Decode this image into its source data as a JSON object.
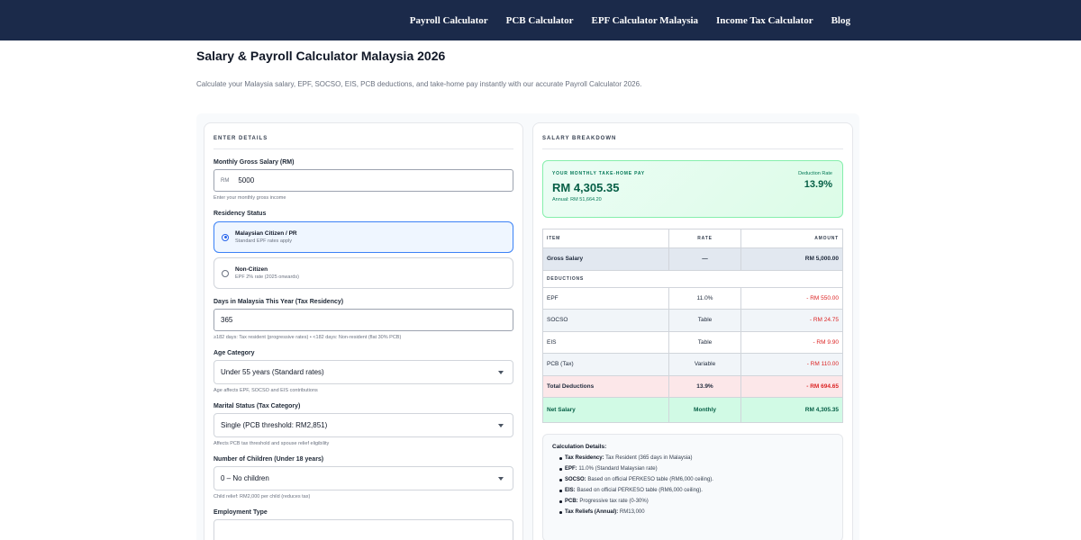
{
  "nav": {
    "links": [
      "Payroll Calculator",
      "PCB Calculator",
      "EPF Calculator Malaysia",
      "Income Tax Calculator",
      "Blog"
    ]
  },
  "page": {
    "title": "Salary & Payroll Calculator Malaysia 2026",
    "subtitle": "Calculate your Malaysia salary, EPF, SOCSO, EIS, PCB deductions, and take-home pay instantly with our accurate Payroll Calculator 2026."
  },
  "form": {
    "section_title": "ENTER DETAILS",
    "salary": {
      "label": "Monthly Gross Salary (RM)",
      "prefix": "RM",
      "value": "5000",
      "hint": "Enter your monthly gross income"
    },
    "residency": {
      "label": "Residency Status",
      "options": [
        {
          "title": "Malaysian Citizen / PR",
          "desc": "Standard EPF rates apply",
          "selected": true
        },
        {
          "title": "Non-Citizen",
          "desc": "EPF 2% rate (2025 onwards)",
          "selected": false
        }
      ]
    },
    "days": {
      "label": "Days in Malaysia This Year (Tax Residency)",
      "value": "365",
      "hint": "≥182 days: Tax resident (progressive rates) • <182 days: Non-resident (flat 30% PCB)"
    },
    "age": {
      "label": "Age Category",
      "value": "Under 55 years (Standard rates)",
      "hint": "Age affects EPF, SOCSO and EIS contributions"
    },
    "marital": {
      "label": "Marital Status (Tax Category)",
      "value": "Single (PCB threshold: RM2,851)",
      "hint": "Affects PCB tax threshold and spouse relief eligibility"
    },
    "children": {
      "label": "Number of Children (Under 18 years)",
      "value": "0 – No children",
      "hint": "Child relief: RM2,000 per child (reduces tax)"
    },
    "employment": {
      "label": "Employment Type"
    }
  },
  "breakdown": {
    "section_title": "SALARY BREAKDOWN",
    "takehome_label": "YOUR MONTHLY TAKE-HOME PAY",
    "takehome_amount": "RM 4,305.35",
    "annual": "Annual: RM 51,664.20",
    "deduction_rate_label": "Deduction Rate",
    "deduction_rate": "13.9%",
    "table": {
      "headers": [
        "ITEM",
        "RATE",
        "AMOUNT"
      ],
      "gross": {
        "item": "Gross Salary",
        "rate": "—",
        "amount": "RM 5,000.00"
      },
      "group_label": "DEDUCTIONS",
      "rows": [
        {
          "item": "EPF",
          "rate": "11.0%",
          "amount": "- RM 550.00"
        },
        {
          "item": "SOCSO",
          "rate": "Table",
          "amount": "- RM 24.75"
        },
        {
          "item": "EIS",
          "rate": "Table",
          "amount": "- RM 9.90"
        },
        {
          "item": "PCB (Tax)",
          "rate": "Variable",
          "amount": "- RM 110.00"
        }
      ],
      "total": {
        "item": "Total Deductions",
        "rate": "13.9%",
        "amount": "- RM 694.65"
      },
      "net": {
        "item": "Net Salary",
        "rate": "Monthly",
        "amount": "RM 4,305.35"
      }
    },
    "details": {
      "title": "Calculation Details:",
      "items": [
        {
          "key": "Tax Residency:",
          "text": "Tax Resident (365 days in Malaysia)"
        },
        {
          "key": "EPF:",
          "text": "11.0% (Standard Malaysian rate)"
        },
        {
          "key": "SOCSO:",
          "text": "Based on official PERKESO table (RM6,000 ceiling)."
        },
        {
          "key": "EIS:",
          "text": "Based on official PERKESO table (RM6,000 ceiling)."
        },
        {
          "key": "PCB:",
          "text": "Progressive tax rate (0-30%)"
        },
        {
          "key": "Tax Reliefs (Annual):",
          "text": "RM13,000"
        }
      ]
    }
  },
  "colors": {
    "nav_bg": "#1b2a4a",
    "accent_green": "#065f46",
    "negative_red": "#dc2626",
    "selected_blue": "#3b82f6"
  }
}
